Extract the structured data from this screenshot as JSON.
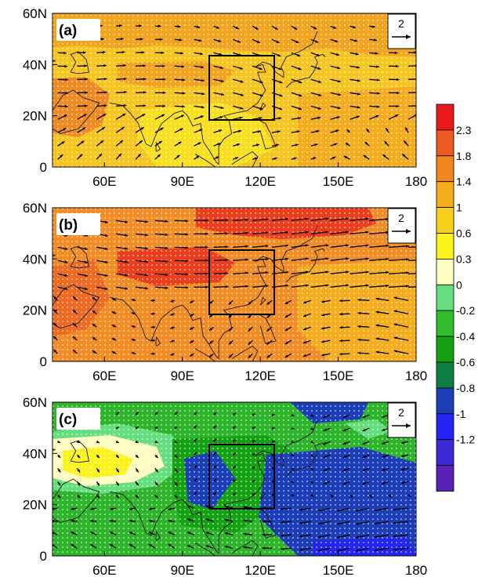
{
  "figure": {
    "panels": [
      {
        "label": "(a)",
        "scale_label": "2",
        "field": "a"
      },
      {
        "label": "(b)",
        "scale_label": "2",
        "field": "b"
      },
      {
        "label": "(c)",
        "scale_label": "2",
        "field": "c"
      }
    ],
    "lat_ticks": [
      "0",
      "20N",
      "40N",
      "60N"
    ],
    "lon_ticks": [
      "60E",
      "90E",
      "120E",
      "150E",
      "180"
    ],
    "lon_range": [
      40,
      180
    ],
    "lat_range": [
      0,
      60
    ],
    "box_region": {
      "lon": [
        100,
        125
      ],
      "lat": [
        18,
        43
      ]
    }
  },
  "colorbar": {
    "levels": [
      "2.3",
      "1.8",
      "1.4",
      "1",
      "0.6",
      "0.3",
      "0",
      "-0.2",
      "-0.4",
      "-0.6",
      "-0.8",
      "-1",
      "-1.2"
    ],
    "colors": [
      "#e8181c",
      "#f05a22",
      "#f2871f",
      "#f5ad1e",
      "#f9cf1d",
      "#fdf31c",
      "#fefcc0",
      "#66de80",
      "#2fbd2c",
      "#14a113",
      "#0e7f43",
      "#1c3eb8",
      "#2424f5",
      "#3d2ad6",
      "#5a20b5"
    ]
  },
  "colors": {
    "panel_a_base": "#f7c51f",
    "panel_b_base": "#f28c25",
    "panel_c_base": "#2fb52c",
    "coast": "#1a1a1a",
    "vector": "#000000"
  }
}
